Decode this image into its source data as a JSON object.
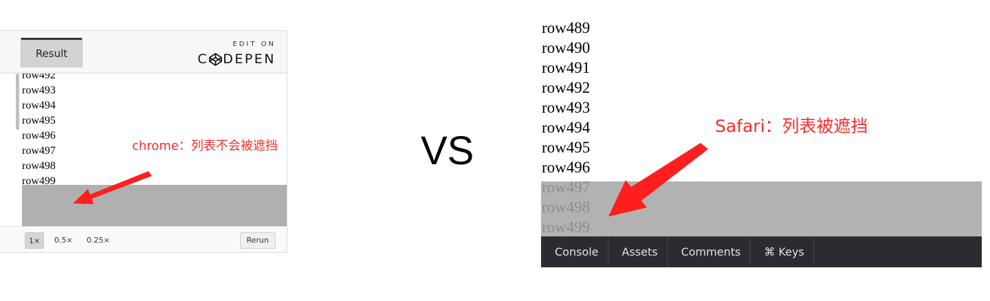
{
  "chrome": {
    "result_tab": "Result",
    "edit_on": "EDIT ON",
    "codepen_c": "C",
    "codepen_rest": "DEPEN",
    "rows": [
      "row492",
      "row493",
      "row494",
      "row495",
      "row496",
      "row497",
      "row498",
      "row499"
    ],
    "annotation": "chrome：列表不会被遮挡",
    "zoom_options": [
      "1×",
      "0.5×",
      "0.25×"
    ],
    "rerun": "Rerun"
  },
  "vs": "VS",
  "safari": {
    "rows": [
      "row489",
      "row490",
      "row491",
      "row492",
      "row493",
      "row494",
      "row495",
      "row496",
      "row497",
      "row498",
      "row499"
    ],
    "annotation": "Safari：列表被遮挡",
    "devtools_tabs": [
      "Console",
      "Assets",
      "Comments",
      "⌘ Keys"
    ]
  },
  "colors": {
    "annotation_red": "#ff2a2a",
    "overlay_gray": "#b0b0b0",
    "devtools_bg": "#2b2c31"
  },
  "icons": [
    "codepen-logo-icon",
    "red-arrow-icon"
  ]
}
